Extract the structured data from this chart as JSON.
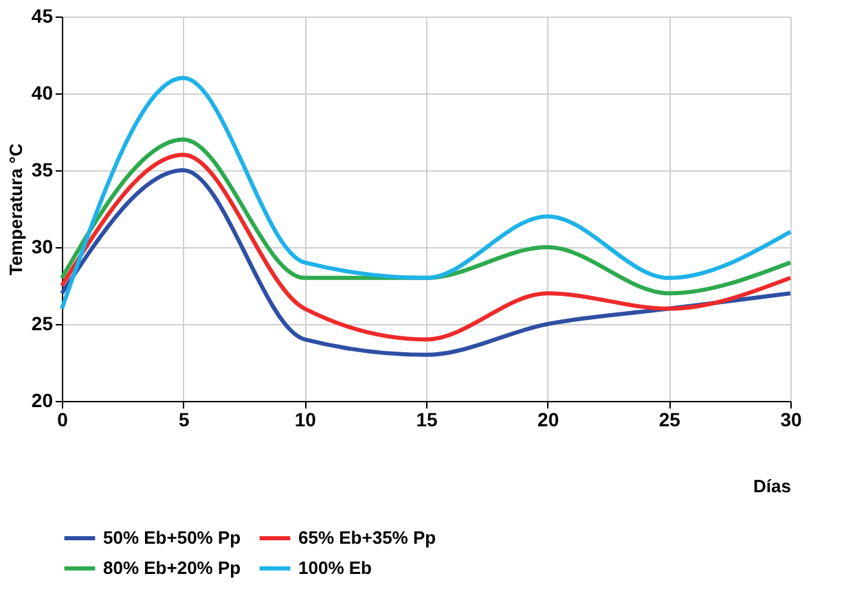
{
  "chart_data": {
    "type": "line",
    "xlabel": "Días",
    "ylabel": "Temperatura °C",
    "x": [
      0,
      5,
      10,
      15,
      20,
      25,
      30
    ],
    "series": [
      {
        "name": "50% Eb+50% Pp",
        "color": "#2e4fa3",
        "values": [
          27,
          35,
          24,
          23,
          25,
          26,
          27
        ]
      },
      {
        "name": "65% Eb+35% Pp",
        "color": "#ee2a2a",
        "values": [
          27.5,
          36,
          26,
          24,
          27,
          26,
          28
        ]
      },
      {
        "name": "80% Eb+20% Pp",
        "color": "#2eaa4e",
        "values": [
          28,
          37,
          28,
          28,
          30,
          27,
          29
        ]
      },
      {
        "name": "100% Eb",
        "color": "#1fb2e8",
        "values": [
          26,
          41,
          29,
          28,
          32,
          28,
          31
        ]
      }
    ],
    "xlim": [
      0,
      30
    ],
    "xticks": [
      0,
      5,
      10,
      15,
      20,
      25,
      30
    ],
    "ylim": [
      20,
      45
    ],
    "yticks": [
      20,
      25,
      30,
      35,
      40,
      45
    ],
    "grid": true,
    "legend": "bottom",
    "marker": "none",
    "line_style": "solid"
  }
}
